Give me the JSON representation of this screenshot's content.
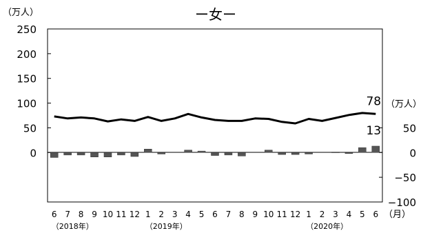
{
  "chart_data": {
    "type": "line",
    "title": "ー女ー",
    "left_unit": "（万人）",
    "right_unit": "（万人）",
    "x_unit": "（月）",
    "left_ylim": [
      -100,
      250
    ],
    "left_ticks": [
      0,
      50,
      100,
      150,
      200,
      250
    ],
    "right_ylim": [
      -100,
      250
    ],
    "right_ticks": [
      -100,
      -50,
      0,
      50
    ],
    "categories": [
      "6",
      "7",
      "8",
      "9",
      "10",
      "11",
      "12",
      "1",
      "2",
      "3",
      "4",
      "5",
      "6",
      "7",
      "8",
      "9",
      "10",
      "11",
      "12",
      "1",
      "2",
      "3",
      "4",
      "5",
      "6"
    ],
    "year_labels": [
      {
        "index": 0,
        "text": "（2018年）"
      },
      {
        "index": 7,
        "text": "（2019年）"
      },
      {
        "index": 19,
        "text": "（2020年）"
      }
    ],
    "series": [
      {
        "kind": "line",
        "axis": "left",
        "values": [
          73,
          69,
          71,
          69,
          63,
          67,
          64,
          72,
          64,
          69,
          78,
          71,
          66,
          64,
          64,
          69,
          68,
          62,
          59,
          68,
          64,
          70,
          76,
          80,
          78
        ],
        "color": "#000000"
      },
      {
        "kind": "bar",
        "axis": "right",
        "values": [
          -10,
          -5,
          -5,
          -9,
          -9,
          -5,
          -8,
          7,
          -3,
          0,
          5,
          3,
          -6,
          -5,
          -7,
          0,
          5,
          -4,
          -4,
          -3,
          0,
          1,
          -2,
          10,
          13
        ],
        "color": "#555555"
      }
    ],
    "data_labels": [
      {
        "series": 0,
        "index": 24,
        "text": "78"
      },
      {
        "series": 1,
        "index": 24,
        "text": "13"
      }
    ],
    "grid": false
  }
}
